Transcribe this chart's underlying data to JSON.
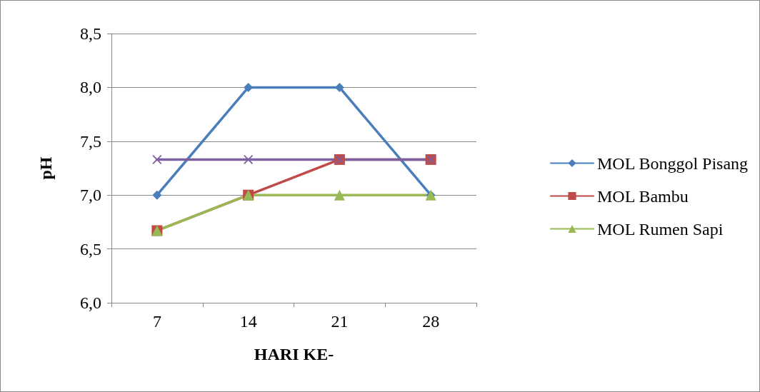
{
  "chart_data": {
    "type": "line",
    "xlabel": "HARI KE-",
    "ylabel": "pH",
    "categories": [
      "7",
      "14",
      "21",
      "28"
    ],
    "series": [
      {
        "name": "MOL Bonggol Pisang",
        "color": "#4a7ebb",
        "marker": "diamond",
        "values": [
          7.0,
          8.0,
          8.0,
          7.0
        ]
      },
      {
        "name": "MOL Bambu",
        "color": "#be4b48",
        "marker": "square",
        "values": [
          6.67,
          7.0,
          7.33,
          7.33
        ]
      },
      {
        "name": "MOL Rumen Sapi",
        "color": "#98b954",
        "marker": "triangle",
        "values": [
          6.67,
          7.0,
          7.0,
          7.0
        ]
      },
      {
        "color": "#7d60a0",
        "marker": "cross",
        "values": [
          7.33,
          7.33,
          7.33,
          7.33
        ]
      }
    ],
    "ylim": [
      6.0,
      8.5
    ],
    "yticks": [
      {
        "value": 6.0,
        "label": "6,0"
      },
      {
        "value": 6.5,
        "label": "6,5"
      },
      {
        "value": 7.0,
        "label": "7,0"
      },
      {
        "value": 7.5,
        "label": "7,5"
      },
      {
        "value": 8.0,
        "label": "8,0"
      },
      {
        "value": 8.5,
        "label": "8,5"
      }
    ],
    "grid": "y",
    "legend": "right",
    "line_style": "solid"
  }
}
